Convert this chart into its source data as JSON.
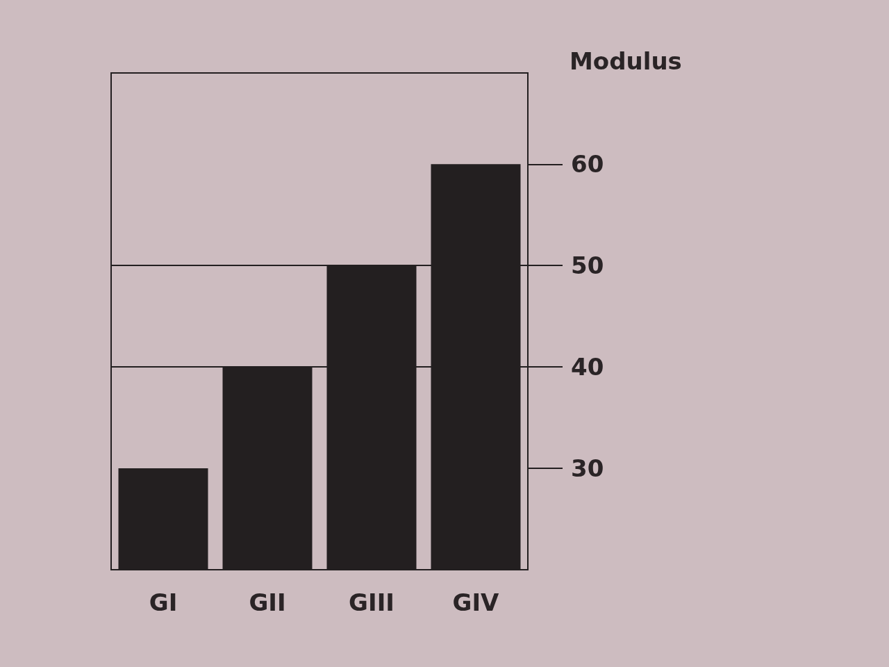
{
  "chart_data": {
    "type": "bar",
    "ylabel": "Modulus",
    "categories": [
      "GI",
      "GII",
      "GIII",
      "GIV"
    ],
    "values": [
      30,
      40,
      50,
      60
    ],
    "color": "#231f20",
    "ylim": [
      20,
      69
    ],
    "yticks": [
      30,
      40,
      50,
      60
    ],
    "grid": "y"
  }
}
